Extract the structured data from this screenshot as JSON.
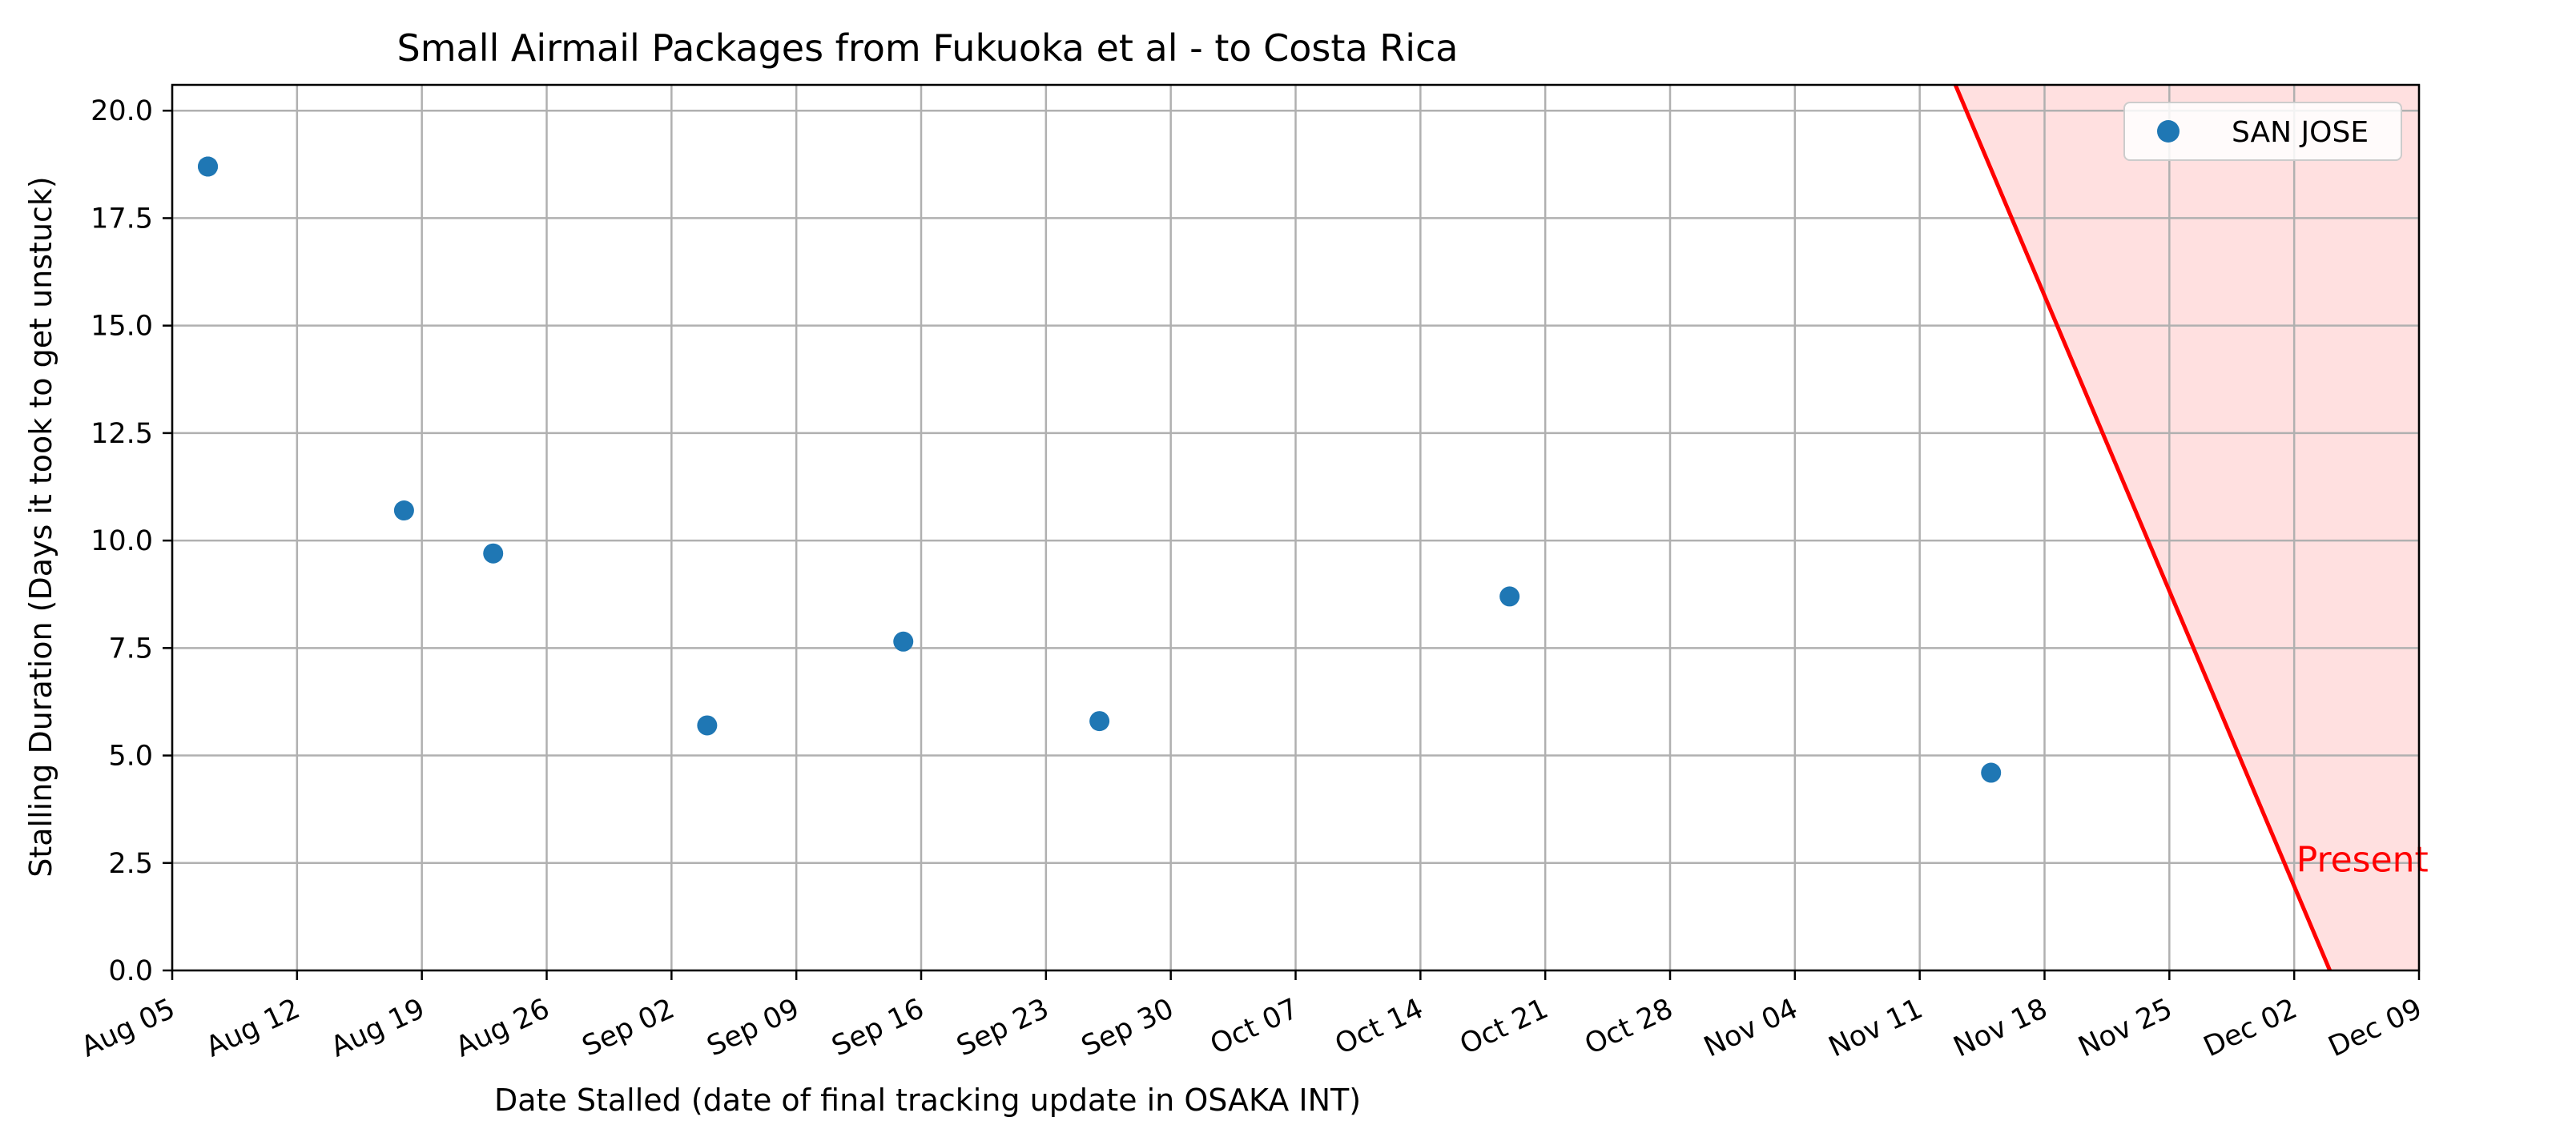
{
  "chart_data": {
    "type": "scatter",
    "title": "Small Airmail Packages from Fukuoka et al - to Costa Rica",
    "xlabel": "Date Stalled (date of final tracking update in OSAKA INT)",
    "ylabel": "Stalling Duration (Days it took to get unstuck)",
    "x_type": "date",
    "xlim": [
      "Aug 05",
      "Dec 09"
    ],
    "ylim": [
      0,
      20.6
    ],
    "x_ticks": [
      "Aug 05",
      "Aug 12",
      "Aug 19",
      "Aug 26",
      "Sep 02",
      "Sep 09",
      "Sep 16",
      "Sep 23",
      "Sep 30",
      "Oct 07",
      "Oct 14",
      "Oct 21",
      "Oct 28",
      "Nov 04",
      "Nov 11",
      "Nov 18",
      "Nov 25",
      "Dec 02",
      "Dec 09"
    ],
    "y_ticks": [
      "0.0",
      "2.5",
      "5.0",
      "7.5",
      "10.0",
      "12.5",
      "15.0",
      "17.5",
      "20.0"
    ],
    "grid": true,
    "legend_position": "top-right",
    "series": [
      {
        "name": "SAN JOSE",
        "color": "#1f77b4",
        "points": [
          {
            "x": "Aug 07",
            "y": 18.7
          },
          {
            "x": "Aug 07",
            "y": 18.7
          },
          {
            "x": "Aug 18",
            "y": 10.7
          },
          {
            "x": "Aug 23",
            "y": 9.7
          },
          {
            "x": "Sep 04",
            "y": 5.7
          },
          {
            "x": "Sep 15",
            "y": 7.65
          },
          {
            "x": "Sep 26",
            "y": 5.8
          },
          {
            "x": "Oct 19",
            "y": 8.7
          },
          {
            "x": "Nov 15",
            "y": 4.6
          }
        ]
      }
    ],
    "annotations": [
      {
        "type": "cutoff-line",
        "label": "Present",
        "color": "#ff0000",
        "fill": "#ffe0e0",
        "from": {
          "x": "Nov 13",
          "y": 20.6
        },
        "to": {
          "x": "Dec 04",
          "y": 0
        }
      }
    ]
  }
}
